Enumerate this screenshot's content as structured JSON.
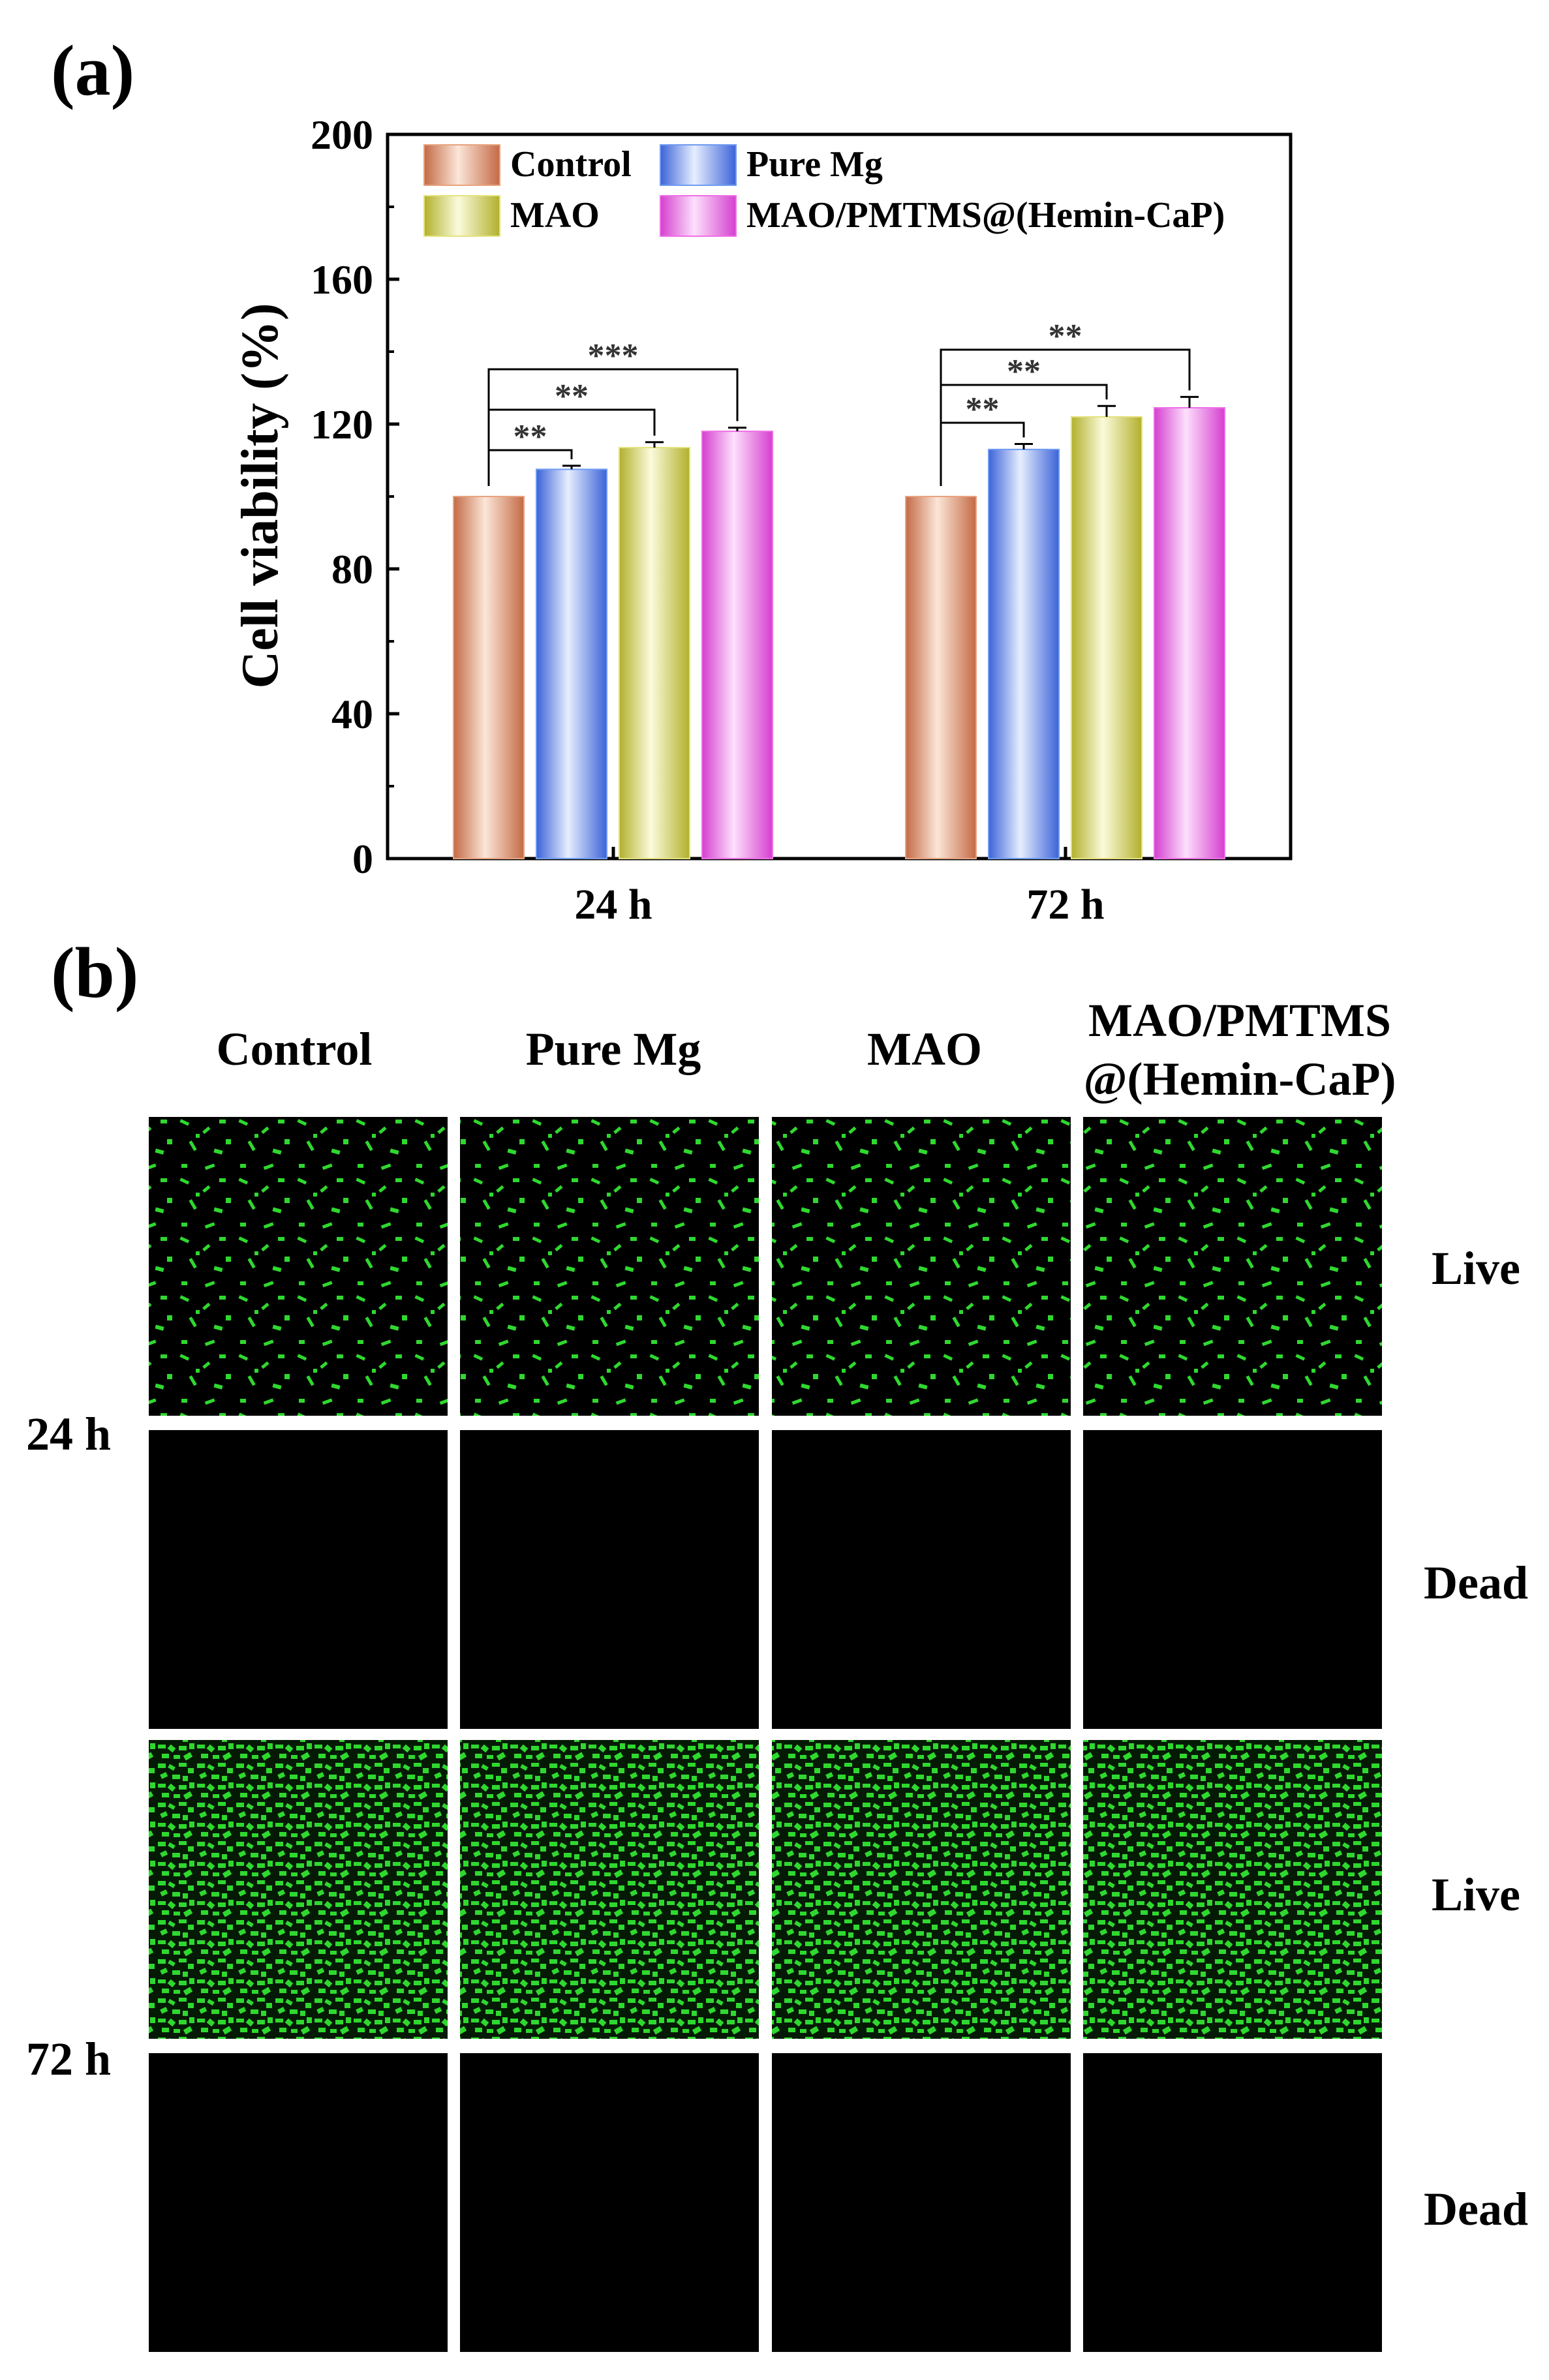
{
  "panel_a": {
    "label": "(a)",
    "chart_data": {
      "type": "bar",
      "ylabel": "Cell viability (%)",
      "ylim": [
        0,
        200
      ],
      "yticks": [
        0,
        40,
        80,
        120,
        160,
        200
      ],
      "categories": [
        "24 h",
        "72 h"
      ],
      "series": [
        {
          "name": "Control",
          "values": [
            100,
            100
          ],
          "errors": [
            0,
            0
          ],
          "color": "#e7a37f"
        },
        {
          "name": "Pure Mg",
          "values": [
            107.5,
            113
          ],
          "errors": [
            1,
            1.5
          ],
          "color": "#6f9bf0"
        },
        {
          "name": "MAO",
          "values": [
            113.5,
            122
          ],
          "errors": [
            1.5,
            3
          ],
          "color": "#e4e27c"
        },
        {
          "name": "MAO/PMTMS@(Hemin-CaP)",
          "values": [
            118,
            124.5
          ],
          "errors": [
            1,
            3
          ],
          "color": "#ee6fe6"
        }
      ],
      "significance": [
        {
          "group": "24 h",
          "from": "Control",
          "to": "Pure Mg",
          "label": "**"
        },
        {
          "group": "24 h",
          "from": "Control",
          "to": "MAO",
          "label": "**"
        },
        {
          "group": "24 h",
          "from": "Control",
          "to": "MAO/PMTMS@(Hemin-CaP)",
          "label": "***"
        },
        {
          "group": "72 h",
          "from": "Control",
          "to": "Pure Mg",
          "label": "**"
        },
        {
          "group": "72 h",
          "from": "Control",
          "to": "MAO",
          "label": "**"
        },
        {
          "group": "72 h",
          "from": "Control",
          "to": "MAO/PMTMS@(Hemin-CaP)",
          "label": "**"
        }
      ],
      "legend": "top-left, two columns"
    }
  },
  "panel_b": {
    "label": "(b)",
    "columns": [
      "Control",
      "Pure Mg",
      "MAO",
      "MAO/PMTMS",
      "@(Hemin-CaP)"
    ],
    "time_labels": [
      "24 h",
      "72 h"
    ],
    "row_labels": [
      "Live",
      "Dead",
      "Live",
      "Dead"
    ],
    "stain_color": "#2fd82f",
    "background_color": "#000000"
  }
}
